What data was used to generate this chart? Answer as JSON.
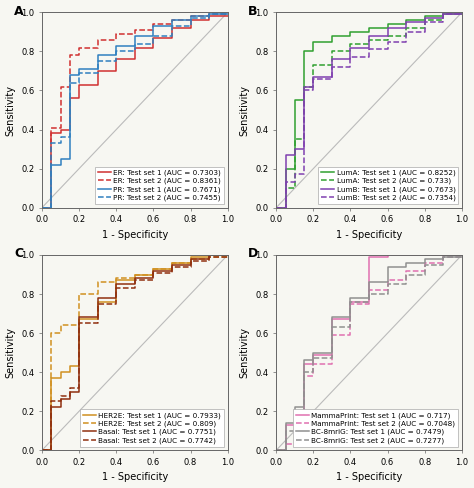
{
  "panels": [
    {
      "label": "A",
      "curves": [
        {
          "name": "ER: Test set 1 (AUC = 0.7303)",
          "color": "#d03030",
          "linestyle": "-",
          "x": [
            0.0,
            0.05,
            0.05,
            0.1,
            0.1,
            0.15,
            0.15,
            0.2,
            0.2,
            0.3,
            0.3,
            0.4,
            0.4,
            0.5,
            0.5,
            0.6,
            0.6,
            0.7,
            0.7,
            0.8,
            0.8,
            0.9,
            0.9,
            1.0
          ],
          "y": [
            0.0,
            0.0,
            0.38,
            0.38,
            0.4,
            0.4,
            0.56,
            0.56,
            0.63,
            0.63,
            0.7,
            0.7,
            0.76,
            0.76,
            0.82,
            0.82,
            0.87,
            0.87,
            0.92,
            0.92,
            0.96,
            0.96,
            0.98,
            0.98
          ]
        },
        {
          "name": "ER: Test set 2 (AUC = 0.8361)",
          "color": "#d03030",
          "linestyle": "--",
          "x": [
            0.0,
            0.05,
            0.05,
            0.1,
            0.1,
            0.15,
            0.15,
            0.2,
            0.2,
            0.3,
            0.3,
            0.4,
            0.4,
            0.5,
            0.5,
            0.6,
            0.6,
            0.7,
            0.7,
            0.8,
            0.8,
            0.9,
            0.9,
            1.0
          ],
          "y": [
            0.0,
            0.0,
            0.41,
            0.41,
            0.62,
            0.62,
            0.78,
            0.78,
            0.82,
            0.82,
            0.86,
            0.86,
            0.89,
            0.89,
            0.91,
            0.91,
            0.94,
            0.94,
            0.96,
            0.96,
            0.98,
            0.98,
            0.99,
            0.99
          ]
        },
        {
          "name": "PR: Test set 1 (AUC = 0.7671)",
          "color": "#3080c0",
          "linestyle": "-",
          "x": [
            0.0,
            0.05,
            0.05,
            0.1,
            0.1,
            0.15,
            0.15,
            0.2,
            0.2,
            0.3,
            0.3,
            0.4,
            0.4,
            0.5,
            0.5,
            0.6,
            0.6,
            0.7,
            0.7,
            0.8,
            0.8,
            0.9,
            0.9,
            1.0
          ],
          "y": [
            0.0,
            0.0,
            0.22,
            0.22,
            0.25,
            0.25,
            0.68,
            0.68,
            0.71,
            0.71,
            0.78,
            0.78,
            0.83,
            0.83,
            0.88,
            0.88,
            0.93,
            0.93,
            0.96,
            0.96,
            0.98,
            0.98,
            0.99,
            0.99
          ]
        },
        {
          "name": "PR: Test set 2 (AUC = 0.7455)",
          "color": "#3080c0",
          "linestyle": "--",
          "x": [
            0.0,
            0.05,
            0.05,
            0.1,
            0.1,
            0.15,
            0.15,
            0.2,
            0.2,
            0.3,
            0.3,
            0.4,
            0.4,
            0.5,
            0.5,
            0.6,
            0.6,
            0.7,
            0.7,
            0.8,
            0.8,
            0.9,
            0.9,
            1.0
          ],
          "y": [
            0.0,
            0.0,
            0.33,
            0.33,
            0.36,
            0.36,
            0.64,
            0.64,
            0.69,
            0.69,
            0.75,
            0.75,
            0.8,
            0.8,
            0.84,
            0.84,
            0.88,
            0.88,
            0.93,
            0.93,
            0.97,
            0.97,
            0.99,
            0.99
          ]
        }
      ]
    },
    {
      "label": "B",
      "curves": [
        {
          "name": "LumA: Test set 1 (AUC = 0.8252)",
          "color": "#30a030",
          "linestyle": "-",
          "x": [
            0.0,
            0.05,
            0.05,
            0.1,
            0.1,
            0.15,
            0.15,
            0.2,
            0.2,
            0.3,
            0.3,
            0.4,
            0.4,
            0.5,
            0.5,
            0.6,
            0.6,
            0.7,
            0.7,
            0.8,
            0.8,
            0.9,
            0.9,
            1.0
          ],
          "y": [
            0.0,
            0.0,
            0.2,
            0.2,
            0.55,
            0.55,
            0.8,
            0.8,
            0.85,
            0.85,
            0.88,
            0.88,
            0.9,
            0.9,
            0.92,
            0.92,
            0.94,
            0.94,
            0.96,
            0.96,
            0.98,
            0.98,
            0.99,
            0.99
          ]
        },
        {
          "name": "LumA: Test set 2 (AUC = 0.733)",
          "color": "#30a030",
          "linestyle": "--",
          "x": [
            0.0,
            0.05,
            0.05,
            0.1,
            0.1,
            0.15,
            0.15,
            0.2,
            0.2,
            0.3,
            0.3,
            0.4,
            0.4,
            0.5,
            0.5,
            0.6,
            0.6,
            0.7,
            0.7,
            0.8,
            0.8,
            0.9,
            0.9,
            1.0
          ],
          "y": [
            0.0,
            0.0,
            0.1,
            0.1,
            0.35,
            0.35,
            0.62,
            0.62,
            0.73,
            0.73,
            0.8,
            0.8,
            0.84,
            0.84,
            0.86,
            0.86,
            0.88,
            0.88,
            0.92,
            0.92,
            0.96,
            0.96,
            0.99,
            0.99
          ]
        },
        {
          "name": "LumB: Test set 1 (AUC = 0.7673)",
          "color": "#8040b0",
          "linestyle": "-",
          "x": [
            0.0,
            0.05,
            0.05,
            0.1,
            0.1,
            0.15,
            0.15,
            0.2,
            0.2,
            0.3,
            0.3,
            0.4,
            0.4,
            0.5,
            0.5,
            0.6,
            0.6,
            0.7,
            0.7,
            0.8,
            0.8,
            0.9,
            0.9,
            1.0
          ],
          "y": [
            0.0,
            0.0,
            0.27,
            0.27,
            0.3,
            0.3,
            0.62,
            0.62,
            0.67,
            0.67,
            0.76,
            0.76,
            0.82,
            0.82,
            0.88,
            0.88,
            0.92,
            0.92,
            0.95,
            0.95,
            0.97,
            0.97,
            0.99,
            0.99
          ]
        },
        {
          "name": "LumB: Test set 2 (AUC = 0.7354)",
          "color": "#8040b0",
          "linestyle": "--",
          "x": [
            0.0,
            0.05,
            0.05,
            0.1,
            0.1,
            0.15,
            0.15,
            0.2,
            0.2,
            0.3,
            0.3,
            0.4,
            0.4,
            0.5,
            0.5,
            0.6,
            0.6,
            0.7,
            0.7,
            0.8,
            0.8,
            0.9,
            0.9,
            1.0
          ],
          "y": [
            0.0,
            0.0,
            0.13,
            0.13,
            0.17,
            0.17,
            0.6,
            0.6,
            0.66,
            0.66,
            0.72,
            0.72,
            0.77,
            0.77,
            0.81,
            0.81,
            0.85,
            0.85,
            0.9,
            0.9,
            0.95,
            0.95,
            0.99,
            0.99
          ]
        }
      ]
    },
    {
      "label": "C",
      "curves": [
        {
          "name": "HER2E: Test set 1 (AUC = 0.7933)",
          "color": "#d09020",
          "linestyle": "-",
          "x": [
            0.0,
            0.05,
            0.05,
            0.1,
            0.1,
            0.15,
            0.15,
            0.2,
            0.2,
            0.3,
            0.3,
            0.4,
            0.4,
            0.5,
            0.5,
            0.6,
            0.6,
            0.7,
            0.7,
            0.8,
            0.8,
            0.9,
            0.9,
            1.0
          ],
          "y": [
            0.0,
            0.0,
            0.37,
            0.37,
            0.4,
            0.4,
            0.43,
            0.43,
            0.67,
            0.67,
            0.76,
            0.76,
            0.87,
            0.87,
            0.9,
            0.9,
            0.93,
            0.93,
            0.96,
            0.96,
            0.99,
            0.99,
            1.0,
            1.0
          ]
        },
        {
          "name": "HER2E: Test set 2 (AUC = 0.809)",
          "color": "#d09020",
          "linestyle": "--",
          "x": [
            0.0,
            0.05,
            0.05,
            0.1,
            0.1,
            0.2,
            0.2,
            0.3,
            0.3,
            0.4,
            0.4,
            0.5,
            0.5,
            0.6,
            0.6,
            0.7,
            0.7,
            0.8,
            0.8,
            0.9,
            0.9,
            1.0
          ],
          "y": [
            0.0,
            0.0,
            0.6,
            0.6,
            0.64,
            0.64,
            0.8,
            0.8,
            0.86,
            0.86,
            0.88,
            0.88,
            0.9,
            0.9,
            0.93,
            0.93,
            0.96,
            0.96,
            0.98,
            0.98,
            0.99,
            0.99
          ]
        },
        {
          "name": "Basal: Test set 1 (AUC = 0.7751)",
          "color": "#903010",
          "linestyle": "-",
          "x": [
            0.0,
            0.05,
            0.05,
            0.1,
            0.1,
            0.15,
            0.15,
            0.2,
            0.2,
            0.3,
            0.3,
            0.4,
            0.4,
            0.5,
            0.5,
            0.6,
            0.6,
            0.7,
            0.7,
            0.8,
            0.8,
            0.9,
            0.9,
            1.0
          ],
          "y": [
            0.0,
            0.0,
            0.22,
            0.22,
            0.26,
            0.26,
            0.3,
            0.3,
            0.68,
            0.68,
            0.78,
            0.78,
            0.85,
            0.85,
            0.88,
            0.88,
            0.92,
            0.92,
            0.95,
            0.95,
            0.98,
            0.98,
            1.0,
            1.0
          ]
        },
        {
          "name": "Basal: Test set 2 (AUC = 0.7742)",
          "color": "#903010",
          "linestyle": "--",
          "x": [
            0.0,
            0.05,
            0.05,
            0.1,
            0.1,
            0.15,
            0.15,
            0.2,
            0.2,
            0.3,
            0.3,
            0.4,
            0.4,
            0.5,
            0.5,
            0.6,
            0.6,
            0.7,
            0.7,
            0.8,
            0.8,
            0.9,
            0.9,
            1.0
          ],
          "y": [
            0.0,
            0.0,
            0.25,
            0.25,
            0.28,
            0.28,
            0.32,
            0.32,
            0.65,
            0.65,
            0.75,
            0.75,
            0.83,
            0.83,
            0.87,
            0.87,
            0.91,
            0.91,
            0.94,
            0.94,
            0.97,
            0.97,
            0.99,
            0.99
          ]
        }
      ]
    },
    {
      "label": "D",
      "curves": [
        {
          "name": "MammaPrint: Test set 1 (AUC = 0.717)",
          "color": "#e070b0",
          "linestyle": "-",
          "x": [
            0.0,
            0.05,
            0.05,
            0.1,
            0.1,
            0.15,
            0.15,
            0.2,
            0.2,
            0.3,
            0.3,
            0.4,
            0.4,
            0.5,
            0.5,
            0.6,
            0.6,
            0.7,
            0.7,
            0.8,
            0.8,
            0.9,
            0.9,
            1.0
          ],
          "y": [
            0.0,
            0.0,
            0.13,
            0.13,
            0.17,
            0.17,
            0.44,
            0.44,
            0.49,
            0.49,
            0.67,
            0.67,
            0.76,
            0.76,
            0.99,
            0.99,
            1.0,
            1.0,
            1.0,
            1.0,
            1.0,
            1.0,
            1.0,
            1.0
          ]
        },
        {
          "name": "MammaPrint: Test set 2 (AUC = 0.7048)",
          "color": "#e070b0",
          "linestyle": "--",
          "x": [
            0.0,
            0.05,
            0.05,
            0.1,
            0.1,
            0.15,
            0.15,
            0.2,
            0.2,
            0.3,
            0.3,
            0.4,
            0.4,
            0.5,
            0.5,
            0.6,
            0.6,
            0.7,
            0.7,
            0.8,
            0.8,
            0.9,
            0.9,
            1.0
          ],
          "y": [
            0.0,
            0.0,
            0.03,
            0.03,
            0.07,
            0.07,
            0.38,
            0.38,
            0.44,
            0.44,
            0.59,
            0.59,
            0.75,
            0.75,
            0.82,
            0.82,
            0.87,
            0.87,
            0.92,
            0.92,
            0.96,
            0.96,
            0.99,
            0.99
          ]
        },
        {
          "name": "BC-8mriG: Test set 1 (AUC = 0.7479)",
          "color": "#909090",
          "linestyle": "-",
          "x": [
            0.0,
            0.05,
            0.05,
            0.1,
            0.1,
            0.15,
            0.15,
            0.2,
            0.2,
            0.3,
            0.3,
            0.4,
            0.4,
            0.5,
            0.5,
            0.6,
            0.6,
            0.7,
            0.7,
            0.8,
            0.8,
            0.9,
            0.9,
            1.0
          ],
          "y": [
            0.0,
            0.0,
            0.14,
            0.14,
            0.22,
            0.22,
            0.46,
            0.46,
            0.5,
            0.5,
            0.68,
            0.68,
            0.78,
            0.78,
            0.86,
            0.86,
            0.94,
            0.94,
            0.96,
            0.96,
            0.98,
            0.98,
            0.99,
            0.99
          ]
        },
        {
          "name": "BC-8mriG: Test set 2 (AUC = 0.7277)",
          "color": "#909090",
          "linestyle": "--",
          "x": [
            0.0,
            0.05,
            0.05,
            0.1,
            0.1,
            0.15,
            0.15,
            0.2,
            0.2,
            0.3,
            0.3,
            0.4,
            0.4,
            0.5,
            0.5,
            0.6,
            0.6,
            0.7,
            0.7,
            0.8,
            0.8,
            0.9,
            0.9,
            1.0
          ],
          "y": [
            0.0,
            0.0,
            0.1,
            0.1,
            0.14,
            0.14,
            0.4,
            0.4,
            0.47,
            0.47,
            0.63,
            0.63,
            0.76,
            0.76,
            0.8,
            0.8,
            0.85,
            0.85,
            0.9,
            0.9,
            0.95,
            0.95,
            0.99,
            0.99
          ]
        }
      ]
    }
  ],
  "bg_color": "#f7f7f2",
  "diag_color": "#bbbbbb",
  "legend_fontsize": 5.2,
  "axis_fontsize": 7.0,
  "tick_fontsize": 6.0,
  "label_fontsize": 9,
  "tick_labels": [
    "0.0",
    "0.2",
    "0.4",
    "0.6",
    "0.8",
    "1.0"
  ],
  "tick_vals": [
    0.0,
    0.2,
    0.4,
    0.6,
    0.8,
    1.0
  ]
}
